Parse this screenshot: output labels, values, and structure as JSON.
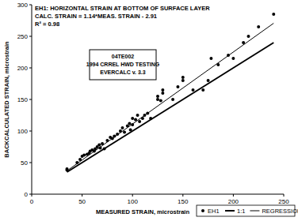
{
  "chart_data": {
    "type": "scatter",
    "title": "EH1: HORIZONTAL STRAIN AT BOTTOM OF SURFACE LAYER",
    "annotations": [
      "CALC. STRAIN = 1.14*MEAS. STRAIN - 2.91",
      "R² = 0.98",
      "04TE002",
      "1994 CRREL HWD TESTING",
      "EVERCALC v. 3.3"
    ],
    "x_label": "MEASURED STRAIN, microstrain",
    "y_label": "BACKCALCULATED STRAIN, microstrain",
    "xlim": [
      0,
      250
    ],
    "xticks": [
      0,
      50,
      100,
      150,
      200,
      250
    ],
    "ylim": [
      0,
      300
    ],
    "yticks": [
      0,
      50,
      100,
      150,
      200,
      250,
      300
    ],
    "grid": false,
    "legend": "lower right",
    "series": [
      {
        "name": "EH1",
        "type": "scatter",
        "marker": "circle",
        "color": "#000000",
        "x": [
          35,
          35,
          45,
          48,
          50,
          52,
          55,
          57,
          58,
          60,
          62,
          63,
          65,
          67,
          68,
          70,
          72,
          75,
          78,
          80,
          82,
          85,
          88,
          90,
          92,
          95,
          97,
          98,
          100,
          100,
          103,
          105,
          107,
          110,
          112,
          115,
          118,
          125,
          125,
          128,
          130,
          130,
          140,
          145,
          150,
          150,
          160,
          170,
          175,
          178,
          185,
          195,
          200,
          210,
          215,
          225,
          240
        ],
        "values": [
          40,
          38,
          50,
          55,
          60,
          62,
          63,
          65,
          68,
          70,
          68,
          72,
          75,
          78,
          73,
          80,
          72,
          85,
          90,
          88,
          92,
          95,
          100,
          105,
          98,
          108,
          112,
          102,
          110,
          120,
          118,
          125,
          115,
          120,
          125,
          128,
          120,
          150,
          155,
          148,
          160,
          165,
          150,
          170,
          180,
          185,
          165,
          165,
          180,
          215,
          205,
          220,
          215,
          240,
          250,
          265,
          285
        ]
      },
      {
        "name": "1:1",
        "type": "line",
        "line_style": "solid",
        "color": "#000000",
        "x": [
          35,
          240
        ],
        "values": [
          35,
          240
        ]
      },
      {
        "name": "REGRESSION",
        "type": "line",
        "line_style": "solid",
        "color": "#000000",
        "x": [
          35,
          240
        ],
        "values": [
          36.99,
          270.69
        ]
      }
    ]
  }
}
